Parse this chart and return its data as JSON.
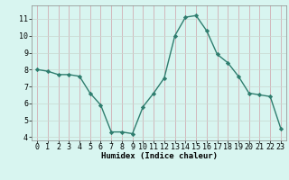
{
  "x": [
    0,
    1,
    2,
    3,
    4,
    5,
    6,
    7,
    8,
    9,
    10,
    11,
    12,
    13,
    14,
    15,
    16,
    17,
    18,
    19,
    20,
    21,
    22,
    23
  ],
  "y": [
    8.0,
    7.9,
    7.7,
    7.7,
    7.6,
    6.6,
    5.9,
    4.3,
    4.3,
    4.2,
    5.8,
    6.6,
    7.5,
    10.0,
    11.1,
    11.2,
    10.3,
    8.9,
    8.4,
    7.6,
    6.6,
    6.5,
    6.4,
    4.5
  ],
  "line_color": "#2e7d6e",
  "marker": "D",
  "marker_size": 2.2,
  "line_width": 1.0,
  "bg_color": "#d8f5f0",
  "grid_major_color": "#c8d8d0",
  "grid_minor_color": "#e0eeea",
  "xlabel": "Humidex (Indice chaleur)",
  "ylim": [
    3.8,
    11.8
  ],
  "xlim": [
    -0.5,
    23.5
  ],
  "yticks": [
    4,
    5,
    6,
    7,
    8,
    9,
    10,
    11
  ],
  "xtick_labels": [
    "0",
    "1",
    "2",
    "3",
    "4",
    "5",
    "6",
    "7",
    "8",
    "9",
    "10",
    "11",
    "12",
    "13",
    "14",
    "15",
    "16",
    "17",
    "18",
    "19",
    "20",
    "21",
    "22",
    "23"
  ],
  "xlabel_fontsize": 6.5,
  "tick_fontsize": 6.0
}
